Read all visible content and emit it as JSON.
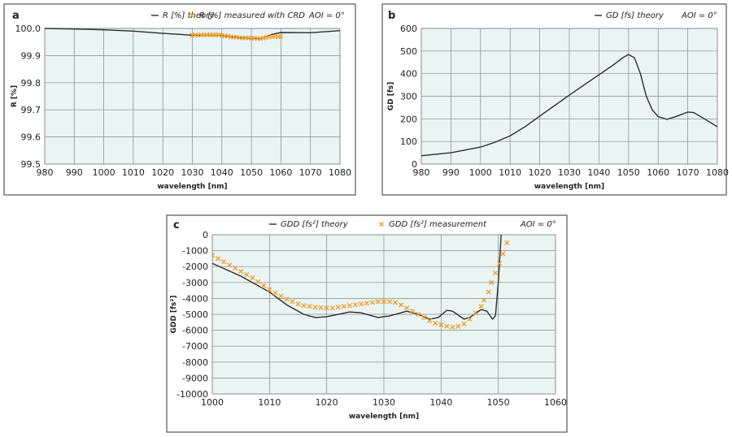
{
  "chart_data": [
    {
      "id": "a",
      "panel_label": "a",
      "type": "line",
      "xlabel": "wavelength [nm]",
      "ylabel": "R [%]",
      "xlim": [
        980,
        1080
      ],
      "ylim": [
        99.5,
        100.0
      ],
      "grid": true,
      "xticks": [
        "980",
        "990",
        "1000",
        "1010",
        "1020",
        "1030",
        "1040",
        "1050",
        "1060",
        "1070",
        "1080"
      ],
      "yticks": [
        "99.5",
        "99.6",
        "99.7",
        "99.8",
        "99.9",
        "100.0"
      ],
      "legend": {
        "theory": "R [%] theory",
        "measured": "R [%] measured with CRD",
        "aoi": "AOI = 0°"
      },
      "legend_placement": "top",
      "series": [
        {
          "name": "R [%] theory",
          "style": "line",
          "x": [
            980,
            990,
            1000,
            1010,
            1020,
            1030,
            1040,
            1045,
            1050,
            1053,
            1057,
            1060,
            1070,
            1080
          ],
          "y": [
            100.0,
            99.998,
            99.995,
            99.99,
            99.982,
            99.975,
            99.974,
            99.966,
            99.962,
            99.963,
            99.978,
            99.985,
            99.984,
            99.992
          ]
        },
        {
          "name": "R [%] measured with CRD",
          "style": "marker",
          "x": [
            1030,
            1031,
            1032,
            1033,
            1034,
            1035,
            1036,
            1037,
            1038,
            1039,
            1040,
            1041,
            1042,
            1043,
            1044,
            1045,
            1046,
            1047,
            1048,
            1049,
            1050,
            1051,
            1052,
            1053,
            1054,
            1055,
            1056,
            1057,
            1058,
            1059,
            1060
          ],
          "y": [
            99.975,
            99.976,
            99.975,
            99.976,
            99.977,
            99.976,
            99.977,
            99.976,
            99.977,
            99.976,
            99.974,
            99.972,
            99.972,
            99.969,
            99.968,
            99.968,
            99.966,
            99.965,
            99.966,
            99.965,
            99.965,
            99.964,
            99.963,
            99.962,
            99.965,
            99.967,
            99.969,
            99.97,
            99.97,
            99.969,
            99.971
          ]
        }
      ]
    },
    {
      "id": "b",
      "panel_label": "b",
      "type": "line",
      "xlabel": "wavelength [nm]",
      "ylabel": "GD [fs]",
      "xlim": [
        980,
        1080
      ],
      "ylim": [
        0,
        600
      ],
      "grid": true,
      "xticks": [
        "980",
        "990",
        "1000",
        "1010",
        "1020",
        "1030",
        "1040",
        "1050",
        "1060",
        "1070",
        "1080"
      ],
      "yticks": [
        "0",
        "100",
        "200",
        "300",
        "400",
        "500",
        "600"
      ],
      "legend": {
        "theory": "GD [fs] theory",
        "aoi": "AOI = 0°"
      },
      "legend_placement": "top-right",
      "series": [
        {
          "name": "GD [fs] theory",
          "style": "line",
          "x": [
            980,
            990,
            1000,
            1005,
            1010,
            1015,
            1020,
            1030,
            1040,
            1045,
            1048,
            1050,
            1052,
            1054,
            1056,
            1058,
            1060,
            1063,
            1066,
            1070,
            1072,
            1075,
            1080
          ],
          "y": [
            37,
            50,
            75,
            97,
            125,
            165,
            212,
            305,
            395,
            440,
            470,
            485,
            470,
            400,
            300,
            240,
            210,
            198,
            210,
            230,
            228,
            205,
            165
          ]
        }
      ]
    },
    {
      "id": "c",
      "panel_label": "c",
      "type": "line",
      "xlabel": "wavelength [nm]",
      "ylabel": "GDD [fs²]",
      "xlim": [
        1000,
        1060
      ],
      "ylim": [
        -10000,
        0
      ],
      "grid": true,
      "xticks": [
        "1000",
        "1010",
        "1020",
        "1030",
        "1040",
        "1050",
        "1060"
      ],
      "yticks": [
        "-10000",
        "-9000",
        "-8000",
        "-7000",
        "-6000",
        "-5000",
        "-4000",
        "-3000",
        "-2000",
        "-1000",
        "0"
      ],
      "legend": {
        "theory": "GDD [fs²] theory",
        "measured": "GDD [fs²] measurement",
        "aoi": "AOI = 0°"
      },
      "legend_placement": "top",
      "series": [
        {
          "name": "GDD [fs²] theory",
          "style": "line",
          "x": [
            1000,
            1005,
            1010,
            1013,
            1016,
            1018,
            1020,
            1024,
            1026,
            1029,
            1031,
            1034,
            1036,
            1038,
            1039.5,
            1041,
            1042,
            1044,
            1045,
            1047,
            1048,
            1049,
            1049.5,
            1050,
            1050.5
          ],
          "y": [
            -1800,
            -2600,
            -3600,
            -4400,
            -5000,
            -5200,
            -5150,
            -4850,
            -4900,
            -5200,
            -5100,
            -4800,
            -5000,
            -5300,
            -5200,
            -4750,
            -4800,
            -5300,
            -5200,
            -4700,
            -4800,
            -5300,
            -5100,
            -3000,
            0
          ]
        },
        {
          "name": "GDD [fs²] measurement",
          "style": "marker",
          "x": [
            1000,
            1001,
            1002,
            1003,
            1004,
            1005,
            1006,
            1007,
            1008,
            1009,
            1010,
            1011,
            1012,
            1013,
            1014,
            1015,
            1016,
            1017,
            1018,
            1019,
            1020,
            1021,
            1022,
            1023,
            1024,
            1025,
            1026,
            1027,
            1028,
            1029,
            1030,
            1031,
            1032,
            1033,
            1034,
            1035,
            1036,
            1037,
            1038,
            1039,
            1040,
            1041,
            1042,
            1043,
            1044,
            1045,
            1046,
            1047,
            1047.5,
            1048.3,
            1048.8,
            1049.5,
            1050.2,
            1050.8,
            1051.5
          ],
          "y": [
            -1300,
            -1500,
            -1700,
            -1900,
            -2100,
            -2300,
            -2500,
            -2700,
            -2950,
            -3200,
            -3450,
            -3650,
            -3850,
            -4050,
            -4200,
            -4350,
            -4450,
            -4500,
            -4550,
            -4580,
            -4600,
            -4600,
            -4550,
            -4500,
            -4450,
            -4400,
            -4350,
            -4300,
            -4250,
            -4200,
            -4200,
            -4200,
            -4250,
            -4400,
            -4600,
            -4800,
            -5000,
            -5200,
            -5400,
            -5550,
            -5650,
            -5750,
            -5800,
            -5750,
            -5600,
            -5300,
            -4900,
            -4500,
            -4100,
            -3600,
            -3000,
            -2400,
            -1800,
            -1200,
            -500
          ]
        }
      ]
    }
  ]
}
